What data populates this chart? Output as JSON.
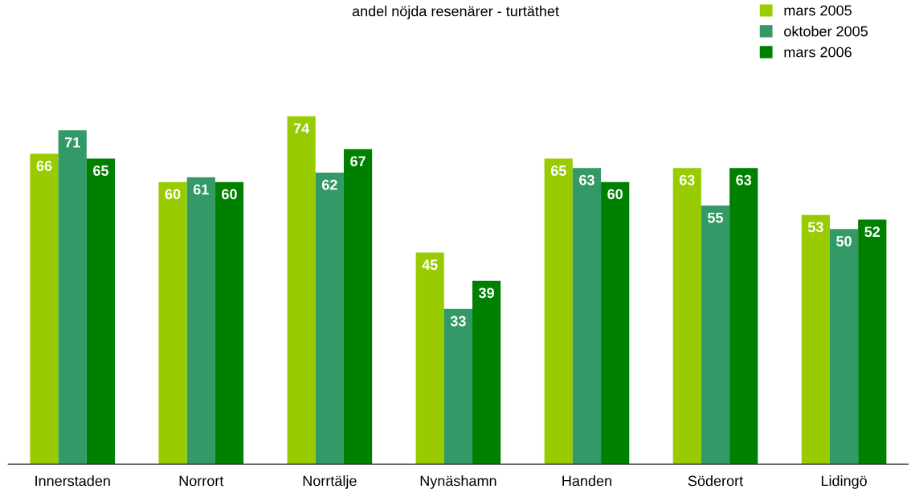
{
  "chart_data": {
    "type": "bar",
    "title": "andel nöjda resenärer - turtäthet",
    "categories": [
      "Innerstaden",
      "Norrort",
      "Norrtälje",
      "Nynäshamn",
      "Handen",
      "Söderort",
      "Lidingö"
    ],
    "series": [
      {
        "name": "mars 2005",
        "color": "#99cc00",
        "values": [
          66,
          60,
          74,
          45,
          65,
          63,
          53
        ]
      },
      {
        "name": "oktober 2005",
        "color": "#339966",
        "values": [
          71,
          61,
          62,
          33,
          63,
          55,
          50
        ]
      },
      {
        "name": "mars 2006",
        "color": "#008000",
        "values": [
          65,
          60,
          67,
          39,
          60,
          63,
          52
        ]
      }
    ],
    "ylim": [
      0,
      93
    ],
    "data_labels": true,
    "legend": "top right",
    "grid": false,
    "tick_labels": "x"
  }
}
